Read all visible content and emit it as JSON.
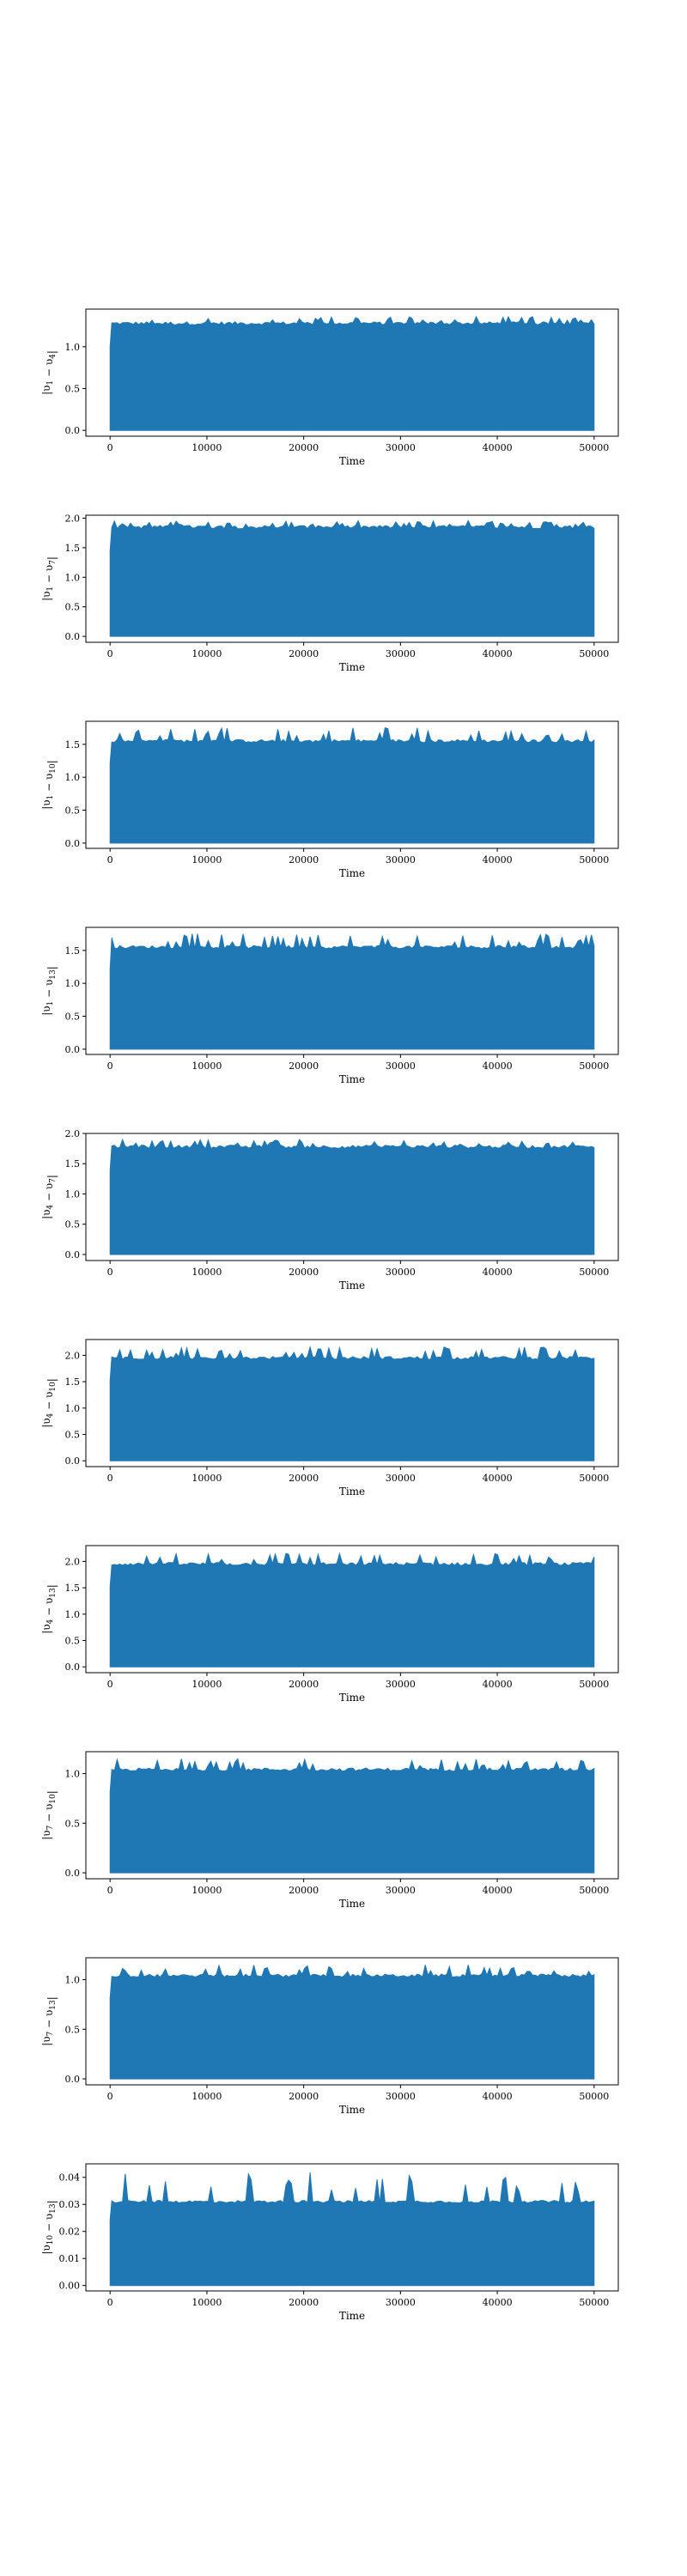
{
  "figure": {
    "xlabel": "Time",
    "series_color": "#1f77b4",
    "shared_x": {
      "xlim": [
        -2500,
        52500
      ],
      "xticks": [
        0,
        10000,
        20000,
        30000,
        40000,
        50000
      ],
      "xtick_labels": [
        "0",
        "10000",
        "20000",
        "30000",
        "40000",
        "50000"
      ],
      "x_start": 0,
      "x_end": 50000
    }
  },
  "chart_data": [
    {
      "type": "line",
      "title": "",
      "xlabel": "Time",
      "ylabel_parts": {
        "a": "1",
        "b": "4"
      },
      "ylabel_text": "|υ1 − υ4|",
      "ylim": [
        -0.07,
        1.45
      ],
      "yticks": [
        0.0,
        0.5,
        1.0
      ],
      "ytick_labels": [
        "0.0",
        "0.5",
        "1.0"
      ],
      "envelope": {
        "min": 0.0,
        "typical_peak": 1.28,
        "max_peak": 1.36
      },
      "grid": false
    },
    {
      "type": "line",
      "title": "",
      "xlabel": "Time",
      "ylabel_parts": {
        "a": "1",
        "b": "7"
      },
      "ylabel_text": "|υ1 − υ7|",
      "ylim": [
        -0.1,
        2.05
      ],
      "yticks": [
        0.0,
        0.5,
        1.0,
        1.5,
        2.0
      ],
      "ytick_labels": [
        "0.0",
        "0.5",
        "1.0",
        "1.5",
        "2.0"
      ],
      "envelope": {
        "min": 0.0,
        "typical_peak": 1.85,
        "max_peak": 1.96
      },
      "grid": false
    },
    {
      "type": "line",
      "title": "",
      "xlabel": "Time",
      "ylabel_parts": {
        "a": "1",
        "b": "10"
      },
      "ylabel_text": "|υ1 − υ10|",
      "ylim": [
        -0.08,
        1.85
      ],
      "yticks": [
        0.0,
        0.5,
        1.0,
        1.5
      ],
      "ytick_labels": [
        "0.0",
        "0.5",
        "1.0",
        "1.5"
      ],
      "envelope": {
        "min": 0.0,
        "typical_peak": 1.55,
        "max_peak": 1.76
      },
      "grid": false
    },
    {
      "type": "line",
      "title": "",
      "xlabel": "Time",
      "ylabel_parts": {
        "a": "1",
        "b": "13"
      },
      "ylabel_text": "|υ1 − υ13|",
      "ylim": [
        -0.08,
        1.85
      ],
      "yticks": [
        0.0,
        0.5,
        1.0,
        1.5
      ],
      "ytick_labels": [
        "0.0",
        "0.5",
        "1.0",
        "1.5"
      ],
      "envelope": {
        "min": 0.0,
        "typical_peak": 1.55,
        "max_peak": 1.76
      },
      "grid": false
    },
    {
      "type": "line",
      "title": "",
      "xlabel": "Time",
      "ylabel_parts": {
        "a": "4",
        "b": "7"
      },
      "ylabel_text": "|υ4 − υ7|",
      "ylim": [
        -0.1,
        2.0
      ],
      "yticks": [
        0.0,
        0.5,
        1.0,
        1.5,
        2.0
      ],
      "ytick_labels": [
        "0.0",
        "0.5",
        "1.0",
        "1.5",
        "2.0"
      ],
      "envelope": {
        "min": 0.0,
        "typical_peak": 1.78,
        "max_peak": 1.9
      },
      "grid": false
    },
    {
      "type": "line",
      "title": "",
      "xlabel": "Time",
      "ylabel_parts": {
        "a": "4",
        "b": "10"
      },
      "ylabel_text": "|υ4 − υ10|",
      "ylim": [
        -0.11,
        2.3
      ],
      "yticks": [
        0.0,
        0.5,
        1.0,
        1.5,
        2.0
      ],
      "ytick_labels": [
        "0.0",
        "0.5",
        "1.0",
        "1.5",
        "2.0"
      ],
      "envelope": {
        "min": 0.0,
        "typical_peak": 1.95,
        "max_peak": 2.16
      },
      "grid": false
    },
    {
      "type": "line",
      "title": "",
      "xlabel": "Time",
      "ylabel_parts": {
        "a": "4",
        "b": "13"
      },
      "ylabel_text": "|υ4 − υ13|",
      "ylim": [
        -0.11,
        2.3
      ],
      "yticks": [
        0.0,
        0.5,
        1.0,
        1.5,
        2.0
      ],
      "ytick_labels": [
        "0.0",
        "0.5",
        "1.0",
        "1.5",
        "2.0"
      ],
      "envelope": {
        "min": 0.0,
        "typical_peak": 1.95,
        "max_peak": 2.16
      },
      "grid": false
    },
    {
      "type": "line",
      "title": "",
      "xlabel": "Time",
      "ylabel_parts": {
        "a": "7",
        "b": "10"
      },
      "ylabel_text": "|υ7 − υ10|",
      "ylim": [
        -0.06,
        1.22
      ],
      "yticks": [
        0.0,
        0.5,
        1.0
      ],
      "ytick_labels": [
        "0.0",
        "0.5",
        "1.0"
      ],
      "envelope": {
        "min": 0.0,
        "typical_peak": 1.04,
        "max_peak": 1.15
      },
      "grid": false
    },
    {
      "type": "line",
      "title": "",
      "xlabel": "Time",
      "ylabel_parts": {
        "a": "7",
        "b": "13"
      },
      "ylabel_text": "|υ7 − υ13|",
      "ylim": [
        -0.06,
        1.22
      ],
      "yticks": [
        0.0,
        0.5,
        1.0
      ],
      "ytick_labels": [
        "0.0",
        "0.5",
        "1.0"
      ],
      "envelope": {
        "min": 0.0,
        "typical_peak": 1.04,
        "max_peak": 1.15
      },
      "grid": false
    },
    {
      "type": "line",
      "title": "",
      "xlabel": "Time",
      "ylabel_parts": {
        "a": "10",
        "b": "13"
      },
      "ylabel_text": "|υ10 − υ13|",
      "ylim": [
        -0.002,
        0.045
      ],
      "yticks": [
        0.0,
        0.01,
        0.02,
        0.03,
        0.04
      ],
      "ytick_labels": [
        "0.00",
        "0.01",
        "0.02",
        "0.03",
        "0.04"
      ],
      "envelope": {
        "min": 0.0,
        "typical_peak": 0.031,
        "max_peak": 0.042
      },
      "grid": false
    }
  ]
}
